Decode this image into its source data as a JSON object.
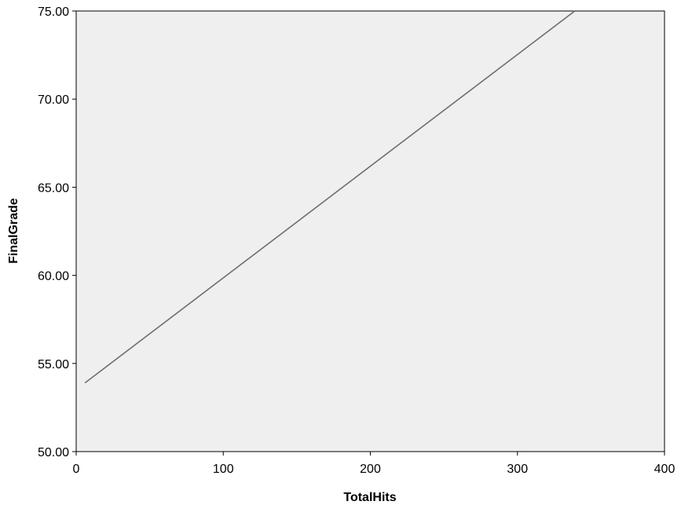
{
  "chart_data": {
    "type": "line",
    "title": "",
    "xlabel": "TotalHits",
    "ylabel": "FinalGrade",
    "xlim": [
      0,
      400
    ],
    "ylim": [
      50,
      75
    ],
    "x_ticks": [
      0,
      100,
      200,
      300,
      400
    ],
    "x_tick_labels": [
      "0",
      "100",
      "200",
      "300",
      "400"
    ],
    "y_ticks": [
      50,
      55,
      60,
      65,
      70,
      75
    ],
    "y_tick_labels": [
      "50.00",
      "55.00",
      "60.00",
      "65.00",
      "70.00",
      "75.00"
    ],
    "grid": false,
    "legend": "none",
    "plot_background": "#efefef",
    "series": [
      {
        "x": [
          6,
          339
        ],
        "y": [
          53.9,
          75.0
        ],
        "color": "#6e6e6e"
      }
    ]
  }
}
